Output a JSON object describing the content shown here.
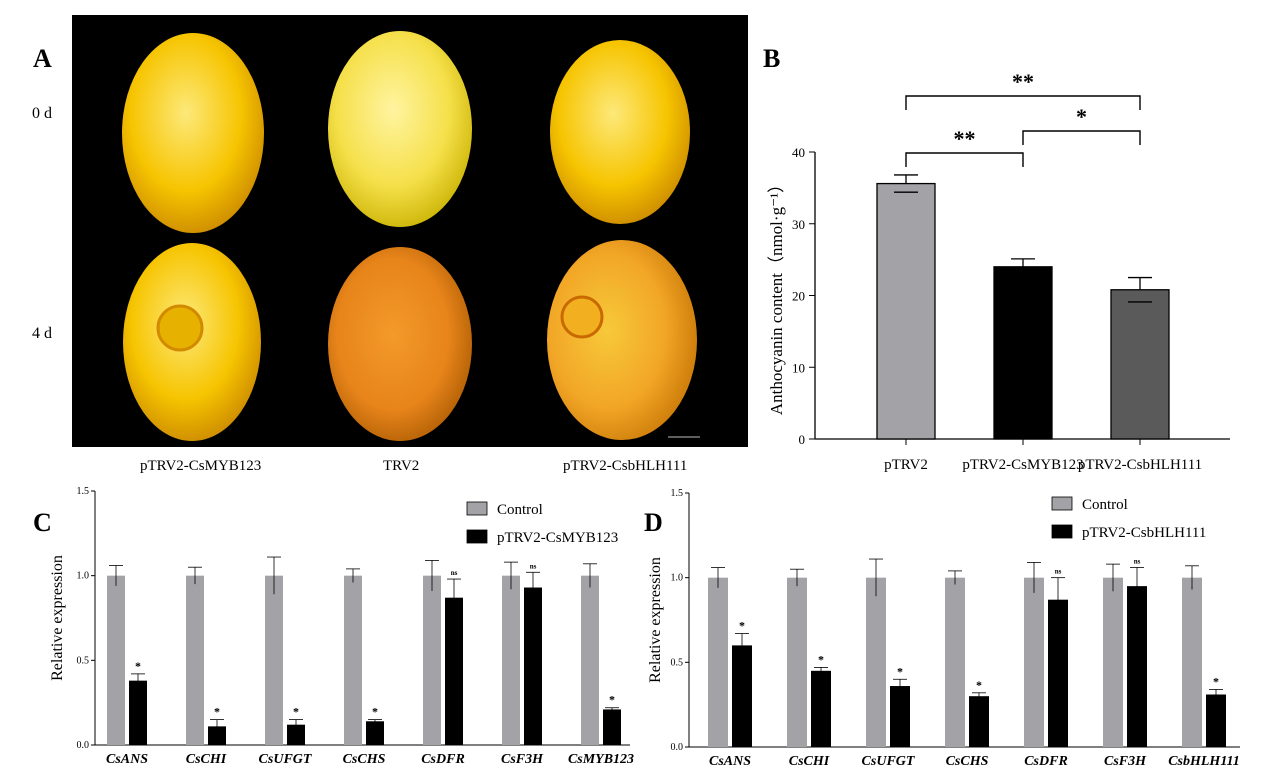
{
  "panels": {
    "a": {
      "letter": "A",
      "row_labels": [
        "0 d",
        "4 d"
      ],
      "captions": [
        "pTRV2-CsMYB123",
        "TRV2",
        "pTRV2-CsbHLH111"
      ]
    },
    "b": {
      "letter": "B"
    },
    "c": {
      "letter": "C"
    },
    "d": {
      "letter": "D"
    }
  },
  "colors": {
    "control": "#a3a3a7",
    "treatment": "#000000",
    "b_bars": [
      "#a3a3a7",
      "#000000",
      "#5a5a5a"
    ],
    "fruit_yellow": "#f7c200",
    "fruit_orange": "#ea8a10"
  },
  "chart_data": [
    {
      "id": "B",
      "type": "bar",
      "categories": [
        "pTRV2",
        "pTRV2-CsMYB123",
        "pTRV2-CsbHLH111"
      ],
      "values": [
        35.6,
        24.0,
        20.8
      ],
      "errors": [
        1.2,
        1.1,
        1.7
      ],
      "ylabel": "Anthocyanin content（nmol·g⁻¹）",
      "ylim": [
        0,
        40
      ],
      "yticks": [
        0,
        10,
        20,
        30,
        40
      ],
      "significance": [
        {
          "from": 0,
          "to": 1,
          "label": "**"
        },
        {
          "from": 1,
          "to": 2,
          "label": "*"
        },
        {
          "from": 0,
          "to": 2,
          "label": "**"
        }
      ]
    },
    {
      "id": "C",
      "type": "bar",
      "categories": [
        "CsANS",
        "CsCHI",
        "CsUFGT",
        "CsCHS",
        "CsDFR",
        "CsF3H",
        "CsMYB123"
      ],
      "series": [
        {
          "name": "Control",
          "values": [
            1.0,
            1.0,
            1.0,
            1.0,
            1.0,
            1.0,
            1.0
          ],
          "errors": [
            0.06,
            0.05,
            0.11,
            0.04,
            0.09,
            0.08,
            0.07
          ]
        },
        {
          "name": "pTRV2-CsMYB123",
          "values": [
            0.38,
            0.11,
            0.12,
            0.14,
            0.87,
            0.93,
            0.21
          ],
          "errors": [
            0.04,
            0.04,
            0.03,
            0.01,
            0.11,
            0.09,
            0.01
          ]
        }
      ],
      "sig_marks": [
        "*",
        "*",
        "*",
        "*",
        "ns",
        "ns",
        "*"
      ],
      "ylabel": "Relative expression",
      "ylim": [
        0,
        1.5
      ],
      "yticks": [
        "0.0",
        "0.5",
        "1.0",
        "1.5"
      ]
    },
    {
      "id": "D",
      "type": "bar",
      "categories": [
        "CsANS",
        "CsCHI",
        "CsUFGT",
        "CsCHS",
        "CsDFR",
        "CsF3H",
        "CsbHLH111"
      ],
      "series": [
        {
          "name": "Control",
          "values": [
            1.0,
            1.0,
            1.0,
            1.0,
            1.0,
            1.0,
            1.0
          ],
          "errors": [
            0.06,
            0.05,
            0.11,
            0.04,
            0.09,
            0.08,
            0.07
          ]
        },
        {
          "name": "pTRV2-CsbHLH111",
          "values": [
            0.6,
            0.45,
            0.36,
            0.3,
            0.87,
            0.95,
            0.31
          ],
          "errors": [
            0.07,
            0.02,
            0.04,
            0.02,
            0.13,
            0.11,
            0.03
          ]
        }
      ],
      "sig_marks": [
        "*",
        "*",
        "*",
        "*",
        "ns",
        "ns",
        "*"
      ],
      "ylabel": "Relative expression",
      "ylim": [
        0,
        1.5
      ],
      "yticks": [
        "0.0",
        "0.5",
        "1.0",
        "1.5"
      ]
    }
  ]
}
